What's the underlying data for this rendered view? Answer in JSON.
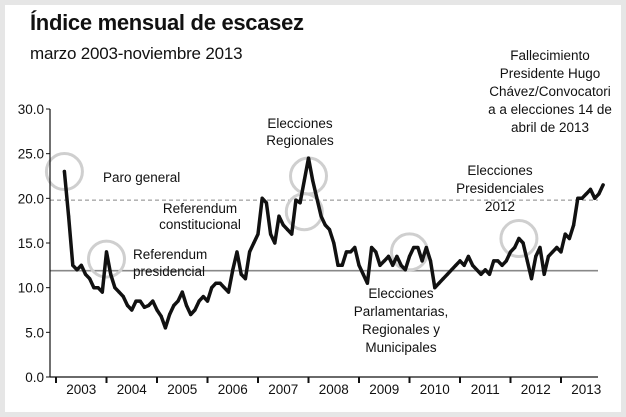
{
  "title": "Índice mensual de escasez",
  "subtitle": "marzo 2003-noviembre 2013",
  "colors": {
    "line": "#111111",
    "circle": "#cfcfcf",
    "refline": "#888888",
    "background": "#ffffff",
    "frame": "#e6e6e6"
  },
  "chart_data": {
    "type": "line",
    "x_start": "2003-03",
    "x_end": "2013-11",
    "ylim": [
      0,
      30
    ],
    "yticks": [
      0.0,
      5.0,
      10.0,
      15.0,
      20.0,
      25.0,
      30.0
    ],
    "ytick_labels": [
      "0.0",
      "5.0",
      "10.0",
      "15.0",
      "20.0",
      "25.0",
      "30.0"
    ],
    "xtick_labels": [
      "2003",
      "2004",
      "2005",
      "2006",
      "2007",
      "2008",
      "2009",
      "2010",
      "2011",
      "2012",
      "2013"
    ],
    "grid": false,
    "ref_lines": [
      {
        "value": 19.8,
        "style": "dashed"
      },
      {
        "value": 11.9,
        "style": "solid"
      }
    ],
    "series": [
      {
        "points": [
          [
            "2003-03",
            23.0
          ],
          [
            "2003-04",
            18.0
          ],
          [
            "2003-05",
            12.5
          ],
          [
            "2003-06",
            12.0
          ],
          [
            "2003-07",
            12.5
          ],
          [
            "2003-08",
            11.5
          ],
          [
            "2003-09",
            11.0
          ],
          [
            "2003-10",
            10.0
          ],
          [
            "2003-11",
            10.0
          ],
          [
            "2003-12",
            9.5
          ],
          [
            "2004-01",
            14.0
          ],
          [
            "2004-02",
            11.5
          ],
          [
            "2004-03",
            10.0
          ],
          [
            "2004-04",
            9.5
          ],
          [
            "2004-05",
            9.0
          ],
          [
            "2004-06",
            8.0
          ],
          [
            "2004-07",
            7.5
          ],
          [
            "2004-08",
            8.5
          ],
          [
            "2004-09",
            8.5
          ],
          [
            "2004-10",
            7.8
          ],
          [
            "2004-11",
            8.0
          ],
          [
            "2004-12",
            8.5
          ],
          [
            "2005-01",
            7.5
          ],
          [
            "2005-02",
            6.8
          ],
          [
            "2005-03",
            5.5
          ],
          [
            "2005-04",
            7.0
          ],
          [
            "2005-05",
            8.0
          ],
          [
            "2005-06",
            8.5
          ],
          [
            "2005-07",
            9.5
          ],
          [
            "2005-08",
            8.0
          ],
          [
            "2005-09",
            7.0
          ],
          [
            "2005-10",
            7.5
          ],
          [
            "2005-11",
            8.5
          ],
          [
            "2005-12",
            9.0
          ],
          [
            "2006-01",
            8.5
          ],
          [
            "2006-02",
            10.0
          ],
          [
            "2006-03",
            10.5
          ],
          [
            "2006-04",
            10.5
          ],
          [
            "2006-05",
            10.0
          ],
          [
            "2006-06",
            9.5
          ],
          [
            "2006-07",
            12.0
          ],
          [
            "2006-08",
            14.0
          ],
          [
            "2006-09",
            11.5
          ],
          [
            "2006-10",
            11.0
          ],
          [
            "2006-11",
            14.0
          ],
          [
            "2006-12",
            15.0
          ],
          [
            "2007-01",
            16.0
          ],
          [
            "2007-02",
            20.0
          ],
          [
            "2007-03",
            19.5
          ],
          [
            "2007-04",
            16.0
          ],
          [
            "2007-05",
            15.0
          ],
          [
            "2007-06",
            18.0
          ],
          [
            "2007-07",
            17.0
          ],
          [
            "2007-08",
            16.5
          ],
          [
            "2007-09",
            16.0
          ],
          [
            "2007-10",
            19.8
          ],
          [
            "2007-11",
            19.5
          ],
          [
            "2007-12",
            22.0
          ],
          [
            "2008-01",
            24.5
          ],
          [
            "2008-02",
            22.0
          ],
          [
            "2008-03",
            20.0
          ],
          [
            "2008-04",
            18.0
          ],
          [
            "2008-05",
            17.0
          ],
          [
            "2008-06",
            16.5
          ],
          [
            "2008-07",
            15.0
          ],
          [
            "2008-08",
            12.5
          ],
          [
            "2008-09",
            12.5
          ],
          [
            "2008-10",
            14.0
          ],
          [
            "2008-11",
            14.0
          ],
          [
            "2008-12",
            14.5
          ],
          [
            "2009-01",
            12.5
          ],
          [
            "2009-02",
            11.5
          ],
          [
            "2009-03",
            10.5
          ],
          [
            "2009-04",
            14.5
          ],
          [
            "2009-05",
            14.0
          ],
          [
            "2009-06",
            12.5
          ],
          [
            "2009-07",
            13.0
          ],
          [
            "2009-08",
            13.5
          ],
          [
            "2009-09",
            12.5
          ],
          [
            "2009-10",
            13.5
          ],
          [
            "2009-11",
            12.5
          ],
          [
            "2009-12",
            12.0
          ],
          [
            "2010-01",
            13.5
          ],
          [
            "2010-02",
            14.5
          ],
          [
            "2010-03",
            14.5
          ],
          [
            "2010-04",
            13.0
          ],
          [
            "2010-05",
            14.5
          ],
          [
            "2010-06",
            13.0
          ],
          [
            "2010-07",
            10.0
          ],
          [
            "2010-08",
            10.5
          ],
          [
            "2010-09",
            11.0
          ],
          [
            "2010-10",
            11.5
          ],
          [
            "2010-11",
            12.0
          ],
          [
            "2010-12",
            12.5
          ],
          [
            "2011-01",
            13.0
          ],
          [
            "2011-02",
            12.5
          ],
          [
            "2011-03",
            13.5
          ],
          [
            "2011-04",
            12.5
          ],
          [
            "2011-05",
            12.0
          ],
          [
            "2011-06",
            11.5
          ],
          [
            "2011-07",
            12.0
          ],
          [
            "2011-08",
            11.5
          ],
          [
            "2011-09",
            13.0
          ],
          [
            "2011-10",
            13.0
          ],
          [
            "2011-11",
            12.5
          ],
          [
            "2011-12",
            13.0
          ],
          [
            "2012-01",
            14.0
          ],
          [
            "2012-02",
            14.5
          ],
          [
            "2012-03",
            15.5
          ],
          [
            "2012-04",
            15.0
          ],
          [
            "2012-05",
            13.0
          ],
          [
            "2012-06",
            11.0
          ],
          [
            "2012-07",
            13.5
          ],
          [
            "2012-08",
            14.5
          ],
          [
            "2012-09",
            11.5
          ],
          [
            "2012-10",
            13.5
          ],
          [
            "2012-11",
            14.0
          ],
          [
            "2012-12",
            14.5
          ],
          [
            "2013-01",
            14.0
          ],
          [
            "2013-02",
            16.0
          ],
          [
            "2013-03",
            15.5
          ],
          [
            "2013-04",
            17.0
          ],
          [
            "2013-05",
            20.0
          ],
          [
            "2013-06",
            20.0
          ],
          [
            "2013-07",
            20.5
          ],
          [
            "2013-08",
            21.0
          ],
          [
            "2013-09",
            20.0
          ],
          [
            "2013-10",
            20.5
          ],
          [
            "2013-11",
            21.5
          ]
        ]
      }
    ],
    "annotations": [
      {
        "lines": [
          "Paro general"
        ],
        "marker": [
          "2003-03",
          23.0
        ]
      },
      {
        "lines": [
          "Referendum",
          "presidencial"
        ],
        "marker": [
          "2004-01",
          13.2
        ]
      },
      {
        "lines": [
          "Referendum",
          "constitucional"
        ],
        "marker": [
          "2007-12",
          18.5
        ]
      },
      {
        "lines": [
          "Elecciones",
          "Regionales"
        ],
        "marker": [
          "2008-01",
          22.5
        ]
      },
      {
        "lines": [
          "Elecciones",
          "Parlamentarias,",
          "Regionales y",
          "Municipales"
        ],
        "marker": [
          "2010-01",
          14.0
        ]
      },
      {
        "lines": [
          "Elecciones",
          "Presidenciales",
          "2012"
        ],
        "marker": [
          "2012-03",
          15.5
        ]
      },
      {
        "lines": [
          "Fallecimiento",
          "Presidente Hugo",
          "Chávez/Convocatori",
          "a a elecciones 14 de",
          "abril de 2013"
        ]
      }
    ]
  }
}
